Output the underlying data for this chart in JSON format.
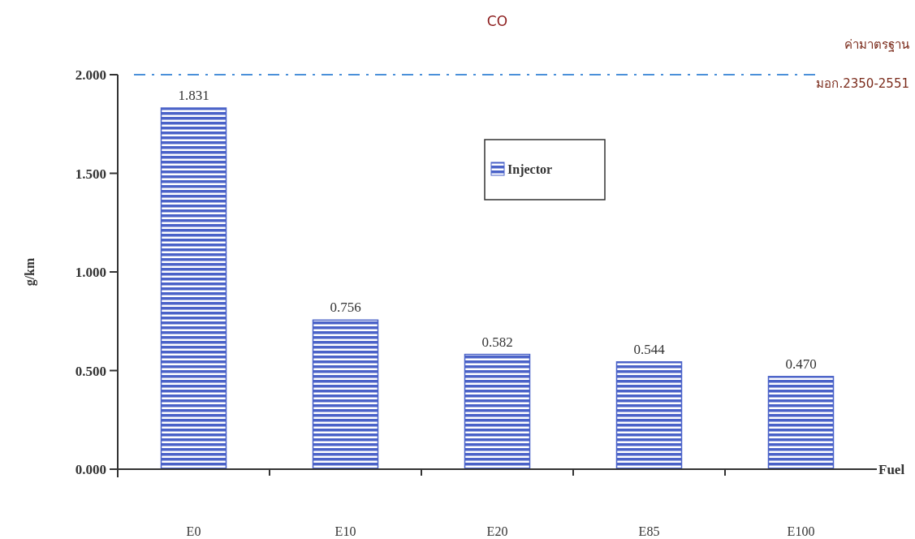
{
  "chart_data": {
    "type": "bar",
    "title": "CO",
    "xlabel": "Fuel",
    "ylabel": "g/km",
    "categories": [
      "E0",
      "E10",
      "E20",
      "E85",
      "E100"
    ],
    "series": [
      {
        "name": "Injector",
        "color": "#4a62c8",
        "values": [
          1.831,
          0.756,
          0.582,
          0.544,
          0.47
        ]
      }
    ],
    "ylim": [
      0,
      2
    ],
    "yticks": [
      {
        "value": 0,
        "label": "0.000"
      },
      {
        "value": 0.5,
        "label": "0.500"
      },
      {
        "value": 1,
        "label": "1.000"
      },
      {
        "value": 1.5,
        "label": "1.500"
      },
      {
        "value": 2,
        "label": "2.000"
      }
    ],
    "value_labels": [
      "1.831",
      "0.756",
      "0.582",
      "0.544",
      "0.470"
    ],
    "ref_lines": [
      {
        "axis": "y",
        "value": 2,
        "label": "ค่ามาตรฐาน\nมอก.2350-2551",
        "color": "#4a90d9",
        "line_style": "dashdot"
      }
    ],
    "legend": "top",
    "grid": false
  }
}
